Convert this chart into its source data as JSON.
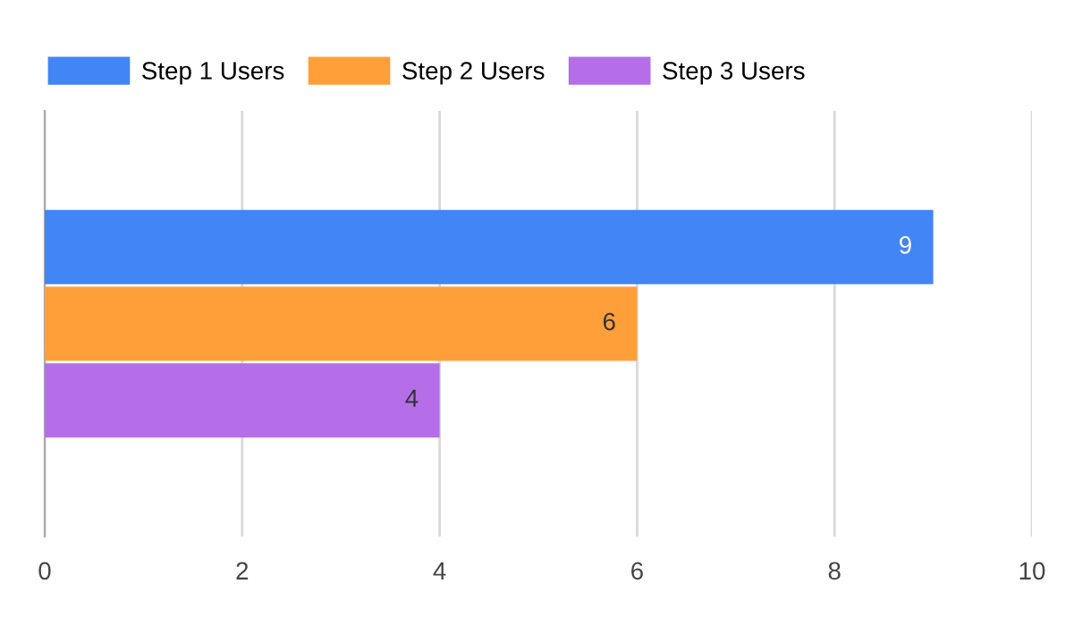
{
  "chart_data": {
    "type": "bar",
    "orientation": "horizontal",
    "categories": [
      null
    ],
    "series": [
      {
        "name": "Step 1 Users",
        "color": "#4285f4",
        "values": [
          9
        ]
      },
      {
        "name": "Step 2 Users",
        "color": "#ff9f3a",
        "values": [
          6
        ]
      },
      {
        "name": "Step 3 Users",
        "color": "#b56ee8",
        "values": [
          4
        ]
      }
    ],
    "xlim": [
      0,
      10
    ],
    "xticks": [
      0,
      2,
      4,
      6,
      8,
      10
    ],
    "grid": "x",
    "legend": "top left",
    "data_labels": true
  }
}
